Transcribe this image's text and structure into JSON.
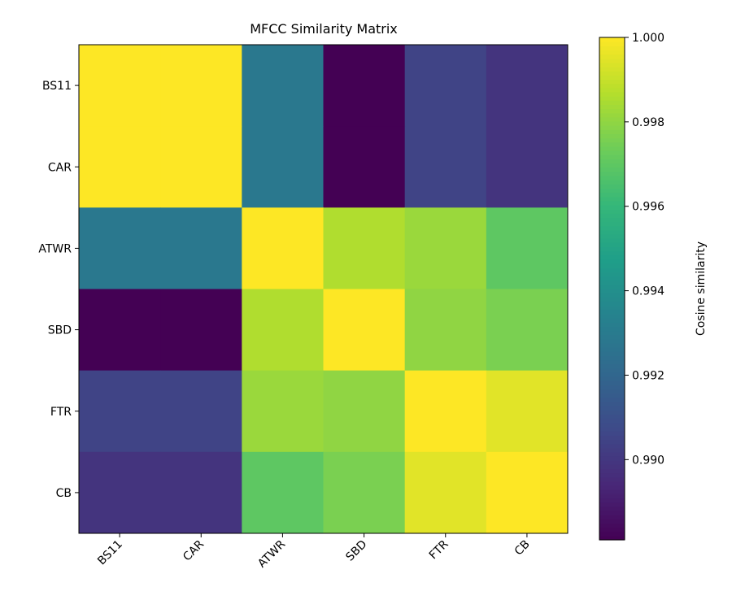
{
  "chart_data": {
    "type": "heatmap",
    "title": "MFCC Similarity Matrix",
    "row_labels": [
      "BS11",
      "CAR",
      "ATWR",
      "SBD",
      "FTR",
      "CB"
    ],
    "col_labels": [
      "BS11",
      "CAR",
      "ATWR",
      "SBD",
      "FTR",
      "CB"
    ],
    "values": [
      [
        1.0,
        1.0,
        0.9929,
        0.9881,
        0.9905,
        0.9899
      ],
      [
        1.0,
        1.0,
        0.9929,
        0.9881,
        0.9905,
        0.9899
      ],
      [
        0.9929,
        0.9929,
        1.0,
        0.9986,
        0.9982,
        0.997
      ],
      [
        0.9881,
        0.9881,
        0.9986,
        1.0,
        0.998,
        0.9976
      ],
      [
        0.9905,
        0.9905,
        0.9982,
        0.998,
        1.0,
        0.9995
      ],
      [
        0.9899,
        0.9899,
        0.997,
        0.9976,
        0.9995,
        1.0
      ]
    ],
    "colormap": "viridis",
    "vmin": 0.9881,
    "vmax": 1.0,
    "colorbar": {
      "label": "Cosine similarity",
      "ticks": [
        0.99,
        0.992,
        0.994,
        0.996,
        0.998,
        1.0
      ],
      "tick_labels": [
        "0.990",
        "0.992",
        "0.994",
        "0.996",
        "0.998",
        "1.000"
      ]
    }
  }
}
